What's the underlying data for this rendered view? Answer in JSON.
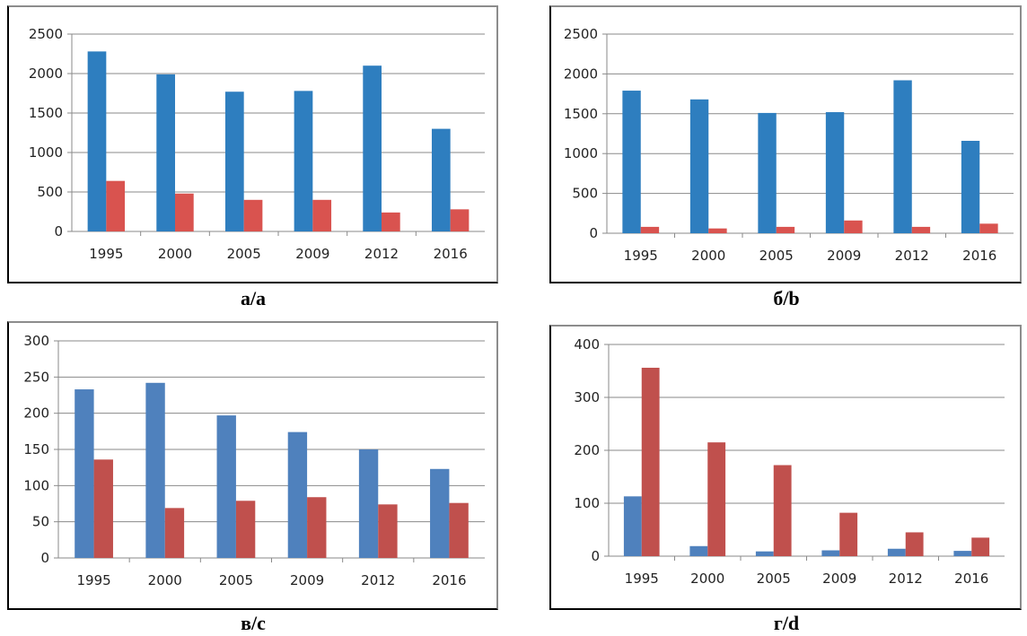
{
  "chart_data": [
    {
      "id": "a",
      "caption": "а/a",
      "type": "bar",
      "categories": [
        "1995",
        "2000",
        "2005",
        "2009",
        "2012",
        "2016"
      ],
      "ylim": [
        0,
        2500
      ],
      "yticks": [
        0,
        500,
        1000,
        1500,
        2000,
        2500
      ],
      "grid": true,
      "series": [
        {
          "color": "#2e7ebf",
          "values": [
            2280,
            1990,
            1770,
            1780,
            2100,
            1300
          ]
        },
        {
          "color": "#d9534f",
          "values": [
            640,
            480,
            400,
            400,
            240,
            280
          ]
        }
      ]
    },
    {
      "id": "b",
      "caption": "б/b",
      "type": "bar",
      "categories": [
        "1995",
        "2000",
        "2005",
        "2009",
        "2012",
        "2016"
      ],
      "ylim": [
        0,
        2500
      ],
      "yticks": [
        0,
        500,
        1000,
        1500,
        2000,
        2500
      ],
      "grid": true,
      "series": [
        {
          "color": "#2e7ebf",
          "values": [
            1790,
            1680,
            1510,
            1520,
            1920,
            1160
          ]
        },
        {
          "color": "#d9534f",
          "values": [
            80,
            60,
            80,
            160,
            80,
            120
          ]
        }
      ]
    },
    {
      "id": "c",
      "caption": "в/c",
      "type": "bar",
      "categories": [
        "1995",
        "2000",
        "2005",
        "2009",
        "2012",
        "2016"
      ],
      "ylim": [
        0,
        300
      ],
      "yticks": [
        0,
        50,
        100,
        150,
        200,
        250,
        300
      ],
      "grid": true,
      "series": [
        {
          "color": "#4f81bd",
          "values": [
            233,
            242,
            197,
            174,
            150,
            123
          ]
        },
        {
          "color": "#c0504d",
          "values": [
            136,
            69,
            79,
            84,
            74,
            76
          ]
        }
      ]
    },
    {
      "id": "d",
      "caption": "г/d",
      "type": "bar",
      "categories": [
        "1995",
        "2000",
        "2005",
        "2009",
        "2012",
        "2016"
      ],
      "ylim": [
        0,
        400
      ],
      "yticks": [
        0,
        100,
        200,
        300,
        400
      ],
      "grid": true,
      "series": [
        {
          "color": "#4f81bd",
          "values": [
            113,
            19,
            9,
            11,
            14,
            10
          ]
        },
        {
          "color": "#c0504d",
          "values": [
            356,
            215,
            172,
            82,
            45,
            35
          ]
        }
      ]
    }
  ]
}
